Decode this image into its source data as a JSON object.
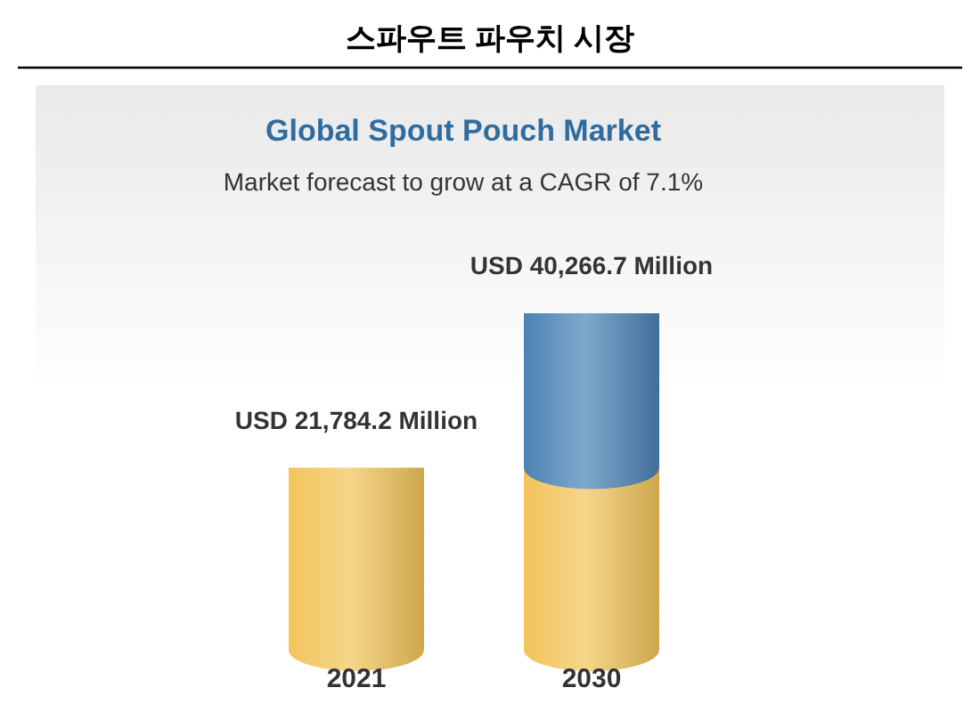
{
  "chart_data": {
    "type": "bar",
    "title": "스파우트 파우치 시장",
    "subtitle": "Global Spout Pouch Market",
    "annotations": [
      "Market forecast to grow at a CAGR of 7.1%"
    ],
    "categories": [
      "2021",
      "2030"
    ],
    "stacked": true,
    "series": [
      {
        "color": "#f2c45a",
        "values": [
          21784.2,
          21784.2
        ],
        "value_labels": [
          "USD 21,784.2 Million",
          null
        ]
      },
      {
        "color": "#4a83b6",
        "values": [
          null,
          18482.5
        ]
      }
    ],
    "totals": [
      null,
      "USD 40,266.7 Million"
    ]
  }
}
